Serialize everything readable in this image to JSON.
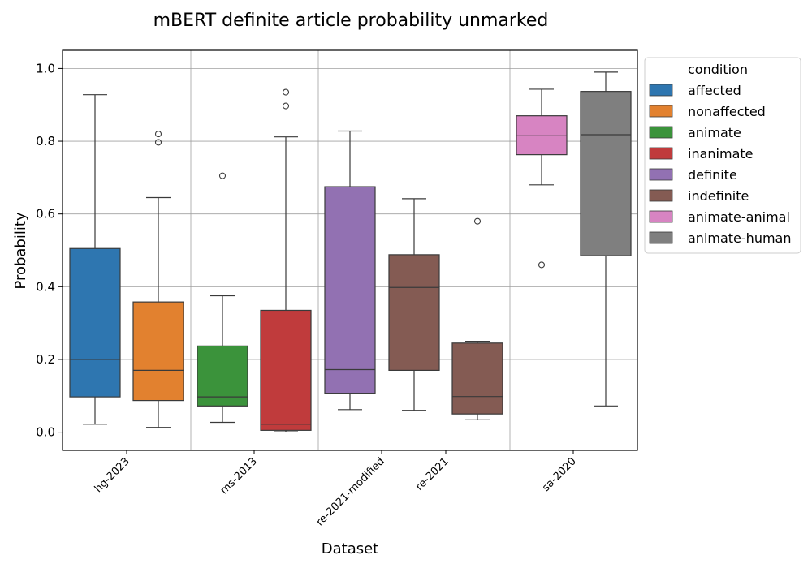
{
  "chart_data": {
    "type": "box",
    "title": "mBERT definite article probability unmarked",
    "xlabel": "Dataset",
    "ylabel": "Probability",
    "ylim": [
      -0.05,
      1.05
    ],
    "yticks": [
      0.0,
      0.2,
      0.4,
      0.6,
      0.8,
      1.0
    ],
    "ytick_labels": [
      "0.0",
      "0.2",
      "0.4",
      "0.6",
      "0.8",
      "1.0"
    ],
    "grid": true,
    "categories": [
      "hg-2023",
      "ms-2013",
      "re-2021-modified",
      "re-2021",
      "sa-2020"
    ],
    "legend": {
      "title": "condition",
      "placement": "outside-right-top",
      "entries": [
        {
          "label": "affected",
          "color": "#2e76b0"
        },
        {
          "label": "nonaffected",
          "color": "#e2812f"
        },
        {
          "label": "animate",
          "color": "#3b933b"
        },
        {
          "label": "inanimate",
          "color": "#c03b3c"
        },
        {
          "label": "definite",
          "color": "#9271b2"
        },
        {
          "label": "indefinite",
          "color": "#845b53"
        },
        {
          "label": "animate-animal",
          "color": "#d784c2"
        },
        {
          "label": "animate-human",
          "color": "#7f7f7f"
        }
      ]
    },
    "boxes": [
      {
        "condition": "affected",
        "dataset": "hg-2023",
        "color": "#2e76b0",
        "whisker_low": 0.022,
        "q1": 0.097,
        "median": 0.2,
        "q3": 0.505,
        "whisker_high": 0.928,
        "outliers": []
      },
      {
        "condition": "nonaffected",
        "dataset": "hg-2023",
        "color": "#e2812f",
        "whisker_low": 0.013,
        "q1": 0.087,
        "median": 0.17,
        "q3": 0.358,
        "whisker_high": 0.645,
        "outliers": [
          0.82,
          0.797
        ]
      },
      {
        "condition": "animate",
        "dataset": "ms-2013",
        "color": "#3b933b",
        "whisker_low": 0.027,
        "q1": 0.072,
        "median": 0.097,
        "q3": 0.237,
        "whisker_high": 0.375,
        "outliers": [
          0.705
        ]
      },
      {
        "condition": "inanimate",
        "dataset": "ms-2013",
        "color": "#c03b3c",
        "whisker_low": 0.001,
        "q1": 0.005,
        "median": 0.022,
        "q3": 0.335,
        "whisker_high": 0.812,
        "outliers": [
          0.935,
          0.897
        ]
      },
      {
        "condition": "definite",
        "dataset": "re-2021-modified",
        "color": "#9271b2",
        "whisker_low": 0.062,
        "q1": 0.107,
        "median": 0.172,
        "q3": 0.675,
        "whisker_high": 0.828,
        "outliers": []
      },
      {
        "condition": "indefinite",
        "dataset": "re-2021-modified",
        "color": "#845b53",
        "whisker_low": 0.06,
        "q1": 0.17,
        "median": 0.398,
        "q3": 0.488,
        "whisker_high": 0.642,
        "outliers": []
      },
      {
        "condition": "indefinite",
        "dataset": "re-2021",
        "color": "#845b53",
        "whisker_low": 0.034,
        "q1": 0.05,
        "median": 0.098,
        "q3": 0.245,
        "whisker_high": 0.25,
        "outliers": [
          0.58
        ]
      },
      {
        "condition": "animate-animal",
        "dataset": "sa-2020",
        "color": "#d784c2",
        "whisker_low": 0.68,
        "q1": 0.763,
        "median": 0.815,
        "q3": 0.87,
        "whisker_high": 0.943,
        "outliers": [
          0.46
        ]
      },
      {
        "condition": "animate-human",
        "dataset": "sa-2020",
        "color": "#7f7f7f",
        "whisker_low": 0.072,
        "q1": 0.485,
        "median": 0.818,
        "q3": 0.937,
        "whisker_high": 0.99,
        "outliers": []
      }
    ]
  }
}
